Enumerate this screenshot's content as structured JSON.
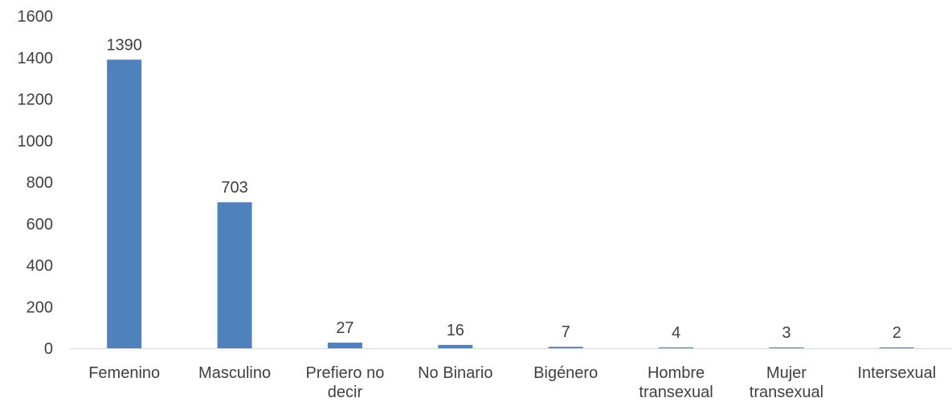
{
  "chart_data": {
    "type": "bar",
    "categories": [
      [
        "Femenino"
      ],
      [
        "Masculino"
      ],
      [
        "Prefiero no",
        "decir"
      ],
      [
        "No Binario"
      ],
      [
        "Bigénero"
      ],
      [
        "Hombre",
        "transexual"
      ],
      [
        "Mujer",
        "transexual"
      ],
      [
        "Intersexual"
      ]
    ],
    "values": [
      1390,
      703,
      27,
      16,
      7,
      4,
      3,
      2
    ],
    "data_labels": [
      "1390",
      "703",
      "27",
      "16",
      "7",
      "4",
      "3",
      "2"
    ],
    "yticks": [
      0,
      200,
      400,
      600,
      800,
      1000,
      1200,
      1400,
      1600
    ],
    "ytick_labels": [
      "0",
      "200",
      "400",
      "600",
      "800",
      "1000",
      "1200",
      "1400",
      "1600"
    ],
    "ylim": [
      0,
      1600
    ],
    "title": "",
    "xlabel": "",
    "ylabel": "",
    "grid": false,
    "legend": false,
    "colors": {
      "bar": "#4f81bd",
      "axis": "#d9d9d9",
      "text": "#404040"
    }
  }
}
